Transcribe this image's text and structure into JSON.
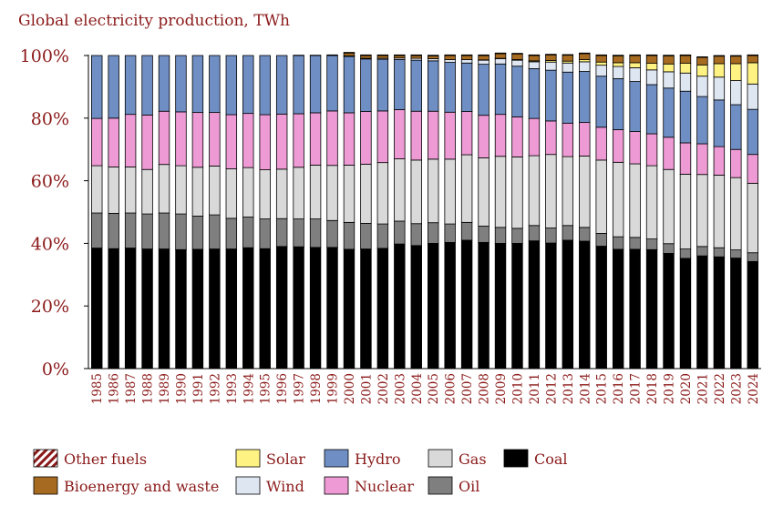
{
  "chart_data": {
    "type": "bar",
    "stacked": true,
    "title": "Global electricity production, TWh",
    "xlabel": "",
    "ylabel": "",
    "ylim": [
      0,
      100
    ],
    "yticks": [
      "0%",
      "20%",
      "40%",
      "60%",
      "80%",
      "100%"
    ],
    "grid": false,
    "legend_position": "bottom",
    "categories": [
      "1985",
      "1986",
      "1987",
      "1988",
      "1989",
      "1990",
      "1991",
      "1992",
      "1993",
      "1994",
      "1995",
      "1996",
      "1997",
      "1998",
      "1999",
      "2000",
      "2001",
      "2002",
      "2003",
      "2004",
      "2005",
      "2006",
      "2007",
      "2008",
      "2009",
      "2010",
      "2011",
      "2012",
      "2013",
      "2014",
      "2015",
      "2016",
      "2017",
      "2018",
      "2019",
      "2020",
      "2021",
      "2022",
      "2023",
      "2024"
    ],
    "series": [
      {
        "name": "Coal",
        "color": "#000000",
        "values": [
          38.5,
          38.3,
          38.5,
          38.2,
          38.2,
          38.0,
          38.1,
          38.2,
          38.2,
          38.6,
          38.3,
          39.0,
          38.9,
          38.7,
          38.7,
          38.1,
          38.2,
          38.4,
          39.8,
          39.3,
          40.0,
          40.3,
          41.0,
          40.3,
          40.0,
          40.0,
          40.8,
          40.1,
          41.0,
          40.7,
          39.1,
          38.1,
          38.1,
          38.0,
          36.8,
          35.2,
          36.0,
          35.7,
          35.3,
          34.2
        ]
      },
      {
        "name": "Oil",
        "color": "#7f7f7f",
        "values": [
          11.2,
          11.3,
          11.2,
          11.2,
          11.5,
          11.4,
          10.6,
          10.9,
          9.8,
          9.8,
          9.5,
          8.9,
          8.9,
          9.1,
          8.6,
          8.6,
          8.2,
          7.8,
          7.3,
          7.0,
          6.6,
          5.9,
          5.7,
          5.2,
          5.1,
          4.8,
          4.9,
          4.8,
          4.7,
          4.4,
          4.1,
          4.0,
          3.8,
          3.4,
          3.1,
          3.0,
          3.0,
          2.9,
          2.6,
          2.8
        ]
      },
      {
        "name": "Gas",
        "color": "#d9d9d9",
        "values": [
          15.1,
          14.8,
          14.7,
          14.2,
          15.5,
          15.4,
          15.6,
          15.6,
          15.8,
          15.8,
          15.7,
          15.8,
          16.5,
          17.2,
          17.6,
          18.3,
          18.9,
          19.6,
          19.9,
          20.3,
          20.3,
          20.7,
          21.6,
          21.8,
          22.7,
          22.8,
          22.3,
          23.5,
          22.0,
          22.8,
          23.4,
          23.8,
          23.5,
          23.4,
          23.7,
          23.9,
          23.0,
          23.2,
          23.1,
          22.2
        ]
      },
      {
        "name": "Nuclear",
        "color": "#ee9ad4",
        "values": [
          15.1,
          15.6,
          16.8,
          17.4,
          17.0,
          17.2,
          17.5,
          17.1,
          17.3,
          17.3,
          17.6,
          17.6,
          17.1,
          16.7,
          17.4,
          16.7,
          16.8,
          16.5,
          15.7,
          15.6,
          15.3,
          15.0,
          13.8,
          13.6,
          13.4,
          12.8,
          11.9,
          10.7,
          10.7,
          10.7,
          10.5,
          10.4,
          10.3,
          10.2,
          10.3,
          10.0,
          9.8,
          9.1,
          9.0,
          9.2
        ]
      },
      {
        "name": "Hydro",
        "color": "#6f8ec4",
        "values": [
          20.1,
          20.0,
          18.8,
          19.0,
          17.8,
          18.0,
          18.2,
          18.2,
          18.9,
          18.5,
          18.9,
          18.7,
          18.6,
          18.3,
          17.7,
          18.0,
          16.8,
          16.5,
          16.0,
          16.3,
          16.1,
          15.9,
          15.5,
          16.3,
          16.1,
          16.2,
          15.9,
          16.2,
          16.3,
          16.3,
          16.3,
          16.3,
          16.0,
          15.7,
          15.7,
          16.5,
          15.1,
          14.9,
          14.3,
          14.4
        ]
      },
      {
        "name": "Wind",
        "color": "#dee6f2",
        "values": [
          0,
          0,
          0,
          0,
          0,
          0,
          0,
          0,
          0,
          0,
          0,
          0,
          0.1,
          0.1,
          0.2,
          0.2,
          0.2,
          0.3,
          0.5,
          0.6,
          0.7,
          0.9,
          1.1,
          1.3,
          1.7,
          1.9,
          2.2,
          2.6,
          2.9,
          3.1,
          3.5,
          3.9,
          4.4,
          4.7,
          5.2,
          5.8,
          6.5,
          7.3,
          7.7,
          8.1
        ]
      },
      {
        "name": "Solar",
        "color": "#fef282",
        "values": [
          0,
          0,
          0,
          0,
          0,
          0,
          0,
          0,
          0,
          0,
          0,
          0,
          0,
          0,
          0,
          0,
          0,
          0,
          0,
          0,
          0,
          0,
          0,
          0.1,
          0.1,
          0.2,
          0.3,
          0.5,
          0.6,
          0.7,
          1.0,
          1.2,
          1.6,
          2.1,
          2.5,
          3.1,
          3.6,
          4.3,
          5.4,
          6.8
        ]
      },
      {
        "name": "Bioenergy and waste",
        "color": "#a66a21",
        "values": [
          0,
          0,
          0,
          0,
          0,
          0,
          0,
          0,
          0,
          0,
          0,
          0,
          0,
          0,
          0,
          0.9,
          0.9,
          0.9,
          0.8,
          0.9,
          0.9,
          1.3,
          1.3,
          1.4,
          1.5,
          1.8,
          1.7,
          1.8,
          1.9,
          1.9,
          2.1,
          2.2,
          2.3,
          2.5,
          2.6,
          2.5,
          2.4,
          2.4,
          2.4,
          2.3
        ]
      },
      {
        "name": "Other fuels",
        "color": "#8b1a1a",
        "pattern": "diagonal-hatch",
        "values": [
          0,
          0,
          0,
          0,
          0,
          0,
          0,
          0,
          0,
          0,
          0,
          0,
          0,
          0,
          0,
          0.2,
          0.2,
          0.2,
          0.2,
          0.2,
          0.2,
          0.2,
          0.2,
          0.2,
          0.2,
          0.2,
          0.2,
          0.2,
          0.2,
          0.2,
          0.2,
          0.2,
          0.2,
          0.2,
          0.2,
          0.2,
          0.2,
          0.2,
          0.2,
          0.2
        ]
      }
    ],
    "legend": [
      {
        "name": "Other fuels",
        "col": 0,
        "row": 0
      },
      {
        "name": "Bioenergy and waste",
        "col": 0,
        "row": 1
      },
      {
        "name": "Solar",
        "col": 1,
        "row": 0
      },
      {
        "name": "Wind",
        "col": 1,
        "row": 1
      },
      {
        "name": "Hydro",
        "col": 2,
        "row": 0
      },
      {
        "name": "Nuclear",
        "col": 2,
        "row": 1
      },
      {
        "name": "Gas",
        "col": 3,
        "row": 0
      },
      {
        "name": "Oil",
        "col": 3,
        "row": 1
      },
      {
        "name": "Coal",
        "col": 4,
        "row": 0
      }
    ]
  }
}
